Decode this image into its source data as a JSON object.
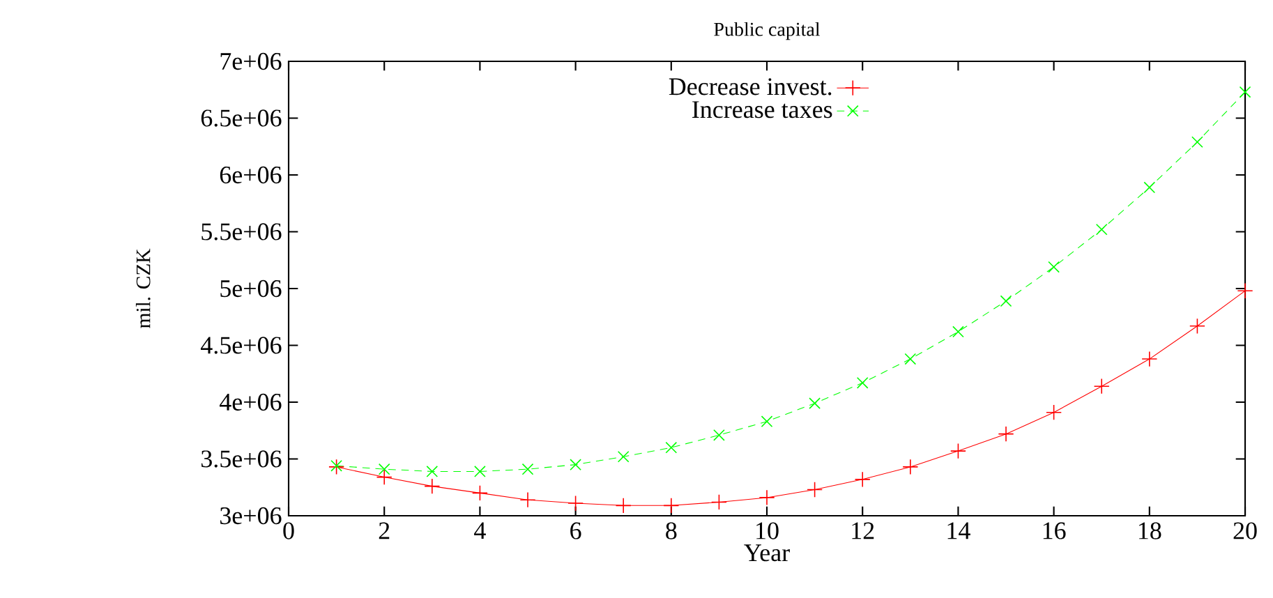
{
  "chart_data": {
    "type": "line",
    "title": "Public capital",
    "xlabel": "Year",
    "ylabel": "mil. CZK",
    "x": [
      1,
      2,
      3,
      4,
      5,
      6,
      7,
      8,
      9,
      10,
      11,
      12,
      13,
      14,
      15,
      16,
      17,
      18,
      19,
      20
    ],
    "series": [
      {
        "name": "Decrease invest.",
        "color": "#ff0000",
        "marker": "plus",
        "line_style": "solid",
        "values": [
          3430000,
          3340000,
          3260000,
          3200000,
          3140000,
          3110000,
          3090000,
          3090000,
          3120000,
          3160000,
          3230000,
          3320000,
          3430000,
          3570000,
          3720000,
          3910000,
          4140000,
          4380000,
          4670000,
          4980000
        ]
      },
      {
        "name": "Increase taxes",
        "color": "#00ff00",
        "marker": "cross",
        "line_style": "dashed",
        "values": [
          3440000,
          3410000,
          3390000,
          3390000,
          3410000,
          3450000,
          3520000,
          3600000,
          3710000,
          3830000,
          3990000,
          4170000,
          4380000,
          4620000,
          4890000,
          5190000,
          5520000,
          5890000,
          6290000,
          6730000
        ]
      }
    ],
    "xlim": [
      0,
      20
    ],
    "xticks": [
      0,
      2,
      4,
      6,
      8,
      10,
      12,
      14,
      16,
      18,
      20
    ],
    "ylim": [
      3000000,
      7000000
    ],
    "yticks": [
      {
        "value": 3000000,
        "label": "3e+06"
      },
      {
        "value": 3500000,
        "label": "3.5e+06"
      },
      {
        "value": 4000000,
        "label": "4e+06"
      },
      {
        "value": 4500000,
        "label": "4.5e+06"
      },
      {
        "value": 5000000,
        "label": "5e+06"
      },
      {
        "value": 5500000,
        "label": "5.5e+06"
      },
      {
        "value": 6000000,
        "label": "6e+06"
      },
      {
        "value": 6500000,
        "label": "6.5e+06"
      },
      {
        "value": 7000000,
        "label": "7e+06"
      }
    ],
    "legend": "top",
    "grid": false
  }
}
